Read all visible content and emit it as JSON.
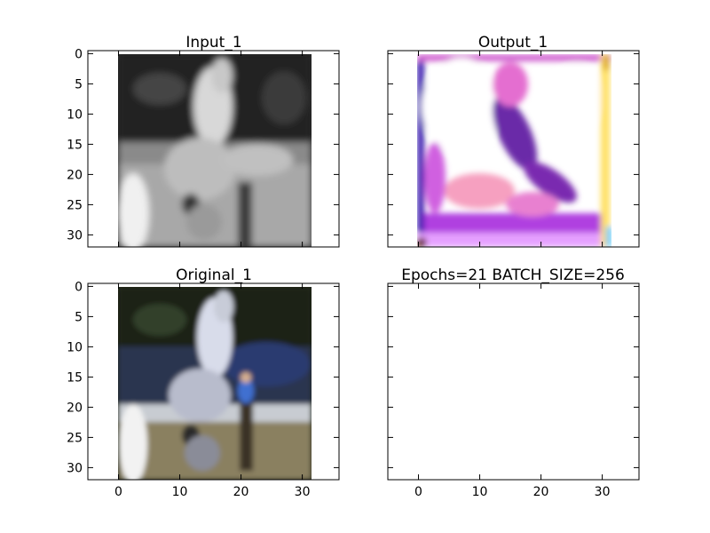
{
  "figure": {
    "background": "#ffffff"
  },
  "chart_data": [
    {
      "type": "heatmap",
      "title": "Input_1",
      "xlim": [
        -5,
        36
      ],
      "ylim": [
        32,
        -0.5
      ],
      "xticks": [
        "0",
        "10",
        "20",
        "30"
      ],
      "yticks": [
        "0",
        "5",
        "10",
        "15",
        "20",
        "25",
        "30"
      ],
      "show_xtick_labels": false,
      "show_ytick_labels": true,
      "image": "grayscale 32x32 blurred photo of a rearing white horse with a rider beside a fence",
      "image_extent": [
        -0.5,
        31.5
      ]
    },
    {
      "type": "heatmap",
      "title": "Output_1",
      "xlim": [
        -5,
        36
      ],
      "ylim": [
        32,
        -0.5
      ],
      "xticks": [
        "0",
        "10",
        "20",
        "30"
      ],
      "yticks": [
        "0",
        "5",
        "10",
        "15",
        "20",
        "25",
        "30"
      ],
      "show_xtick_labels": false,
      "show_ytick_labels": false,
      "image": "32x32 colorized reconstruction with saturated white, magenta and purple regions and a yellow right edge",
      "image_extent": [
        -0.5,
        31.5
      ]
    },
    {
      "type": "heatmap",
      "title": "Original_1",
      "xlim": [
        -5,
        36
      ],
      "ylim": [
        32,
        -0.5
      ],
      "xticks": [
        "0",
        "10",
        "20",
        "30"
      ],
      "yticks": [
        "0",
        "5",
        "10",
        "15",
        "20",
        "25",
        "30"
      ],
      "show_xtick_labels": true,
      "show_ytick_labels": true,
      "image": "32x32 color photo of a rearing white horse with a person in blue, dark green trees behind, grass below",
      "image_extent": [
        -0.5,
        31.5
      ]
    },
    {
      "type": "heatmap",
      "title": "Epochs=21 BATCH_SIZE=256",
      "xlim": [
        -5,
        36
      ],
      "ylim": [
        32,
        -0.5
      ],
      "xticks": [
        "0",
        "10",
        "20",
        "30"
      ],
      "yticks": [
        "0",
        "5",
        "10",
        "15",
        "20",
        "25",
        "30"
      ],
      "show_xtick_labels": true,
      "show_ytick_labels": false,
      "image": "empty axes"
    }
  ]
}
